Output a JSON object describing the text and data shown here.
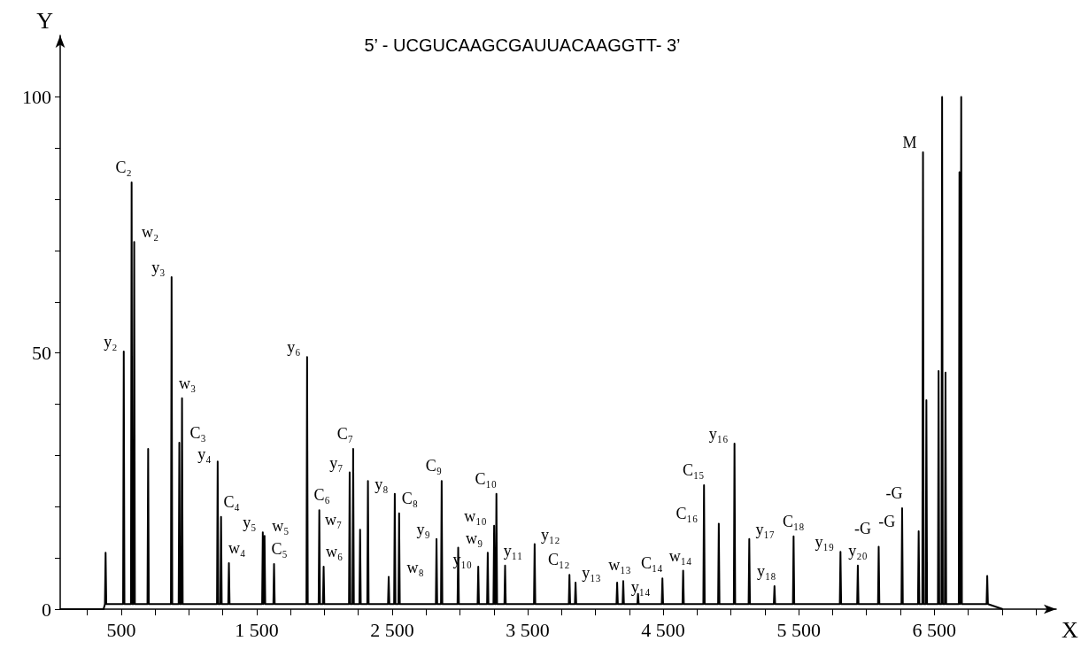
{
  "chart_data": {
    "type": "line",
    "title": "5’ - UCGUCAAGCGAUUACAAGGTT- 3’",
    "xlabel": "X",
    "ylabel": "Y",
    "xlim": [
      50,
      7400
    ],
    "ylim": [
      0,
      112
    ],
    "xticks": [
      {
        "value": 250,
        "label": null
      },
      {
        "value": 500,
        "label": "500"
      },
      {
        "value": 750,
        "label": null
      },
      {
        "value": 1000,
        "label": null
      },
      {
        "value": 1250,
        "label": null
      },
      {
        "value": 1500,
        "label": "1 500"
      },
      {
        "value": 1750,
        "label": null
      },
      {
        "value": 2000,
        "label": null
      },
      {
        "value": 2250,
        "label": null
      },
      {
        "value": 2500,
        "label": "2 500"
      },
      {
        "value": 2750,
        "label": null
      },
      {
        "value": 3000,
        "label": null
      },
      {
        "value": 3250,
        "label": null
      },
      {
        "value": 3500,
        "label": "3 500"
      },
      {
        "value": 3750,
        "label": null
      },
      {
        "value": 4000,
        "label": null
      },
      {
        "value": 4250,
        "label": null
      },
      {
        "value": 4500,
        "label": "4 500"
      },
      {
        "value": 4750,
        "label": null
      },
      {
        "value": 5000,
        "label": null
      },
      {
        "value": 5250,
        "label": null
      },
      {
        "value": 5500,
        "label": "5 500"
      },
      {
        "value": 5750,
        "label": null
      },
      {
        "value": 6000,
        "label": null
      },
      {
        "value": 6250,
        "label": null
      },
      {
        "value": 6500,
        "label": "6 500"
      },
      {
        "value": 6750,
        "label": null
      },
      {
        "value": 7000,
        "label": null
      },
      {
        "value": 7250,
        "label": null
      }
    ],
    "yticks": [
      0,
      {
        "value": 10,
        "label": null
      },
      {
        "value": 20,
        "label": null
      },
      {
        "value": 30,
        "label": null
      },
      {
        "value": 40,
        "label": null
      },
      50,
      {
        "value": 60,
        "label": null
      },
      {
        "value": 70,
        "label": null
      },
      {
        "value": 80,
        "label": null
      },
      {
        "value": 90,
        "label": null
      },
      100
    ],
    "grid": false,
    "marker": "none",
    "series": [
      {
        "color": "#000000",
        "x": [
          50,
          370,
          380,
          385,
          390,
          514,
          519,
          524,
          572,
          577,
          582,
          591,
          596,
          601,
          694,
          699,
          704,
          867,
          872,
          877,
          924,
          929,
          934,
          944,
          949,
          954,
          1207,
          1212,
          1217,
          1232,
          1237,
          1242,
          1290,
          1295,
          1300,
          1540,
          1545,
          1550,
          1553,
          1558,
          1563,
          1623,
          1628,
          1633,
          1867,
          1872,
          1877,
          1957,
          1962,
          1967,
          1989,
          1994,
          1999,
          2181,
          2186,
          2191,
          2207,
          2212,
          2217,
          2258,
          2263,
          2268,
          2316,
          2321,
          2326,
          2469,
          2474,
          2479,
          2514,
          2519,
          2524,
          2546,
          2551,
          2556,
          2822,
          2827,
          2832,
          2860,
          2865,
          2870,
          2982,
          2987,
          2992,
          3130,
          3135,
          3140,
          3200,
          3205,
          3210,
          3247,
          3252,
          3257,
          3264,
          3269,
          3274,
          3328,
          3333,
          3338,
          3546,
          3551,
          3556,
          3803,
          3808,
          3813,
          3848,
          3853,
          3858,
          4155,
          4160,
          4165,
          4200,
          4205,
          4210,
          4309,
          4314,
          4319,
          4489,
          4494,
          4499,
          4642,
          4647,
          4652,
          4796,
          4801,
          4806,
          4905,
          4910,
          4915,
          5021,
          5026,
          5031,
          5130,
          5135,
          5140,
          5316,
          5321,
          5326,
          5457,
          5462,
          5467,
          5803,
          5808,
          5813,
          5931,
          5936,
          5941,
          6085,
          6090,
          6095,
          6258,
          6263,
          6268,
          6380,
          6385,
          6390,
          6412,
          6417,
          6422,
          6437,
          6442,
          6447,
          6527,
          6532,
          6537,
          6553,
          6558,
          6563,
          6578,
          6583,
          6588,
          6681,
          6686,
          6691,
          6694,
          6699,
          6704,
          6886,
          6891,
          6896,
          7006
        ],
        "values": [
          0,
          0,
          1,
          11,
          1,
          1,
          50.3,
          1,
          1,
          83.3,
          1,
          1,
          71.7,
          1,
          1,
          31.3,
          1,
          1,
          64.8,
          1,
          1,
          32.5,
          1,
          1,
          41.2,
          1,
          1,
          28.8,
          1,
          1,
          18,
          1,
          1,
          9,
          1,
          1,
          15,
          1,
          1,
          14.3,
          1,
          1,
          8.8,
          1,
          1,
          49.2,
          1,
          1,
          19.3,
          1,
          1,
          8.3,
          1,
          1,
          26.7,
          1,
          1,
          31.3,
          1,
          1,
          15.5,
          1,
          1,
          25,
          1,
          1,
          6.3,
          1,
          1,
          22.5,
          1,
          1,
          18.7,
          1,
          1,
          13.7,
          1,
          1,
          25,
          1,
          1,
          12,
          1,
          1,
          8.3,
          1,
          1,
          11,
          1,
          1,
          16.3,
          1,
          1,
          22.5,
          1,
          1,
          8.5,
          1,
          1,
          12.7,
          1,
          1,
          6.7,
          1,
          1,
          5.2,
          1,
          1,
          5.2,
          1,
          1,
          5.5,
          1,
          1,
          3,
          1,
          1,
          6,
          1,
          1,
          7.5,
          1,
          1,
          24.2,
          1,
          1,
          16.7,
          1,
          1,
          32.3,
          1,
          1,
          13.7,
          1,
          1,
          4.5,
          1,
          1,
          14.2,
          1,
          1,
          11.2,
          1,
          1,
          8.5,
          1,
          1,
          12.2,
          1,
          1,
          19.7,
          1,
          1,
          15.2,
          1,
          1,
          89.2,
          1,
          1,
          40.8,
          1,
          1,
          46.5,
          1,
          1,
          100,
          1,
          1,
          46.2,
          1,
          1,
          85.3,
          1,
          1,
          100,
          1,
          1,
          6.5,
          1,
          0
        ]
      }
    ],
    "annotations": [
      {
        "text": "C₂",
        "x": 577,
        "y": 83.3
      },
      {
        "text": "w₂",
        "x": 596,
        "y": 71.7
      },
      {
        "text": "y₂",
        "x": 519,
        "y": 50.3
      },
      {
        "text": "y₃",
        "x": 872,
        "y": 64.8
      },
      {
        "text": "w₃",
        "x": 949,
        "y": 41.2
      },
      {
        "text": "C₃",
        "x": 929,
        "y": 32.5
      },
      {
        "text": "y₄",
        "x": 1212,
        "y": 28.8
      },
      {
        "text": "C₄",
        "x": 1237,
        "y": 18
      },
      {
        "text": "w₄",
        "x": 1295,
        "y": 9
      },
      {
        "text": "y₅",
        "x": 1545,
        "y": 15
      },
      {
        "text": "w₅",
        "x": 1558,
        "y": 14.3
      },
      {
        "text": "C₅",
        "x": 1628,
        "y": 8.8
      },
      {
        "text": "y₆",
        "x": 1872,
        "y": 49.2
      },
      {
        "text": "w₆",
        "x": 1994,
        "y": 8.3
      },
      {
        "text": "C₆",
        "x": 1962,
        "y": 19.3
      },
      {
        "text": "y₇",
        "x": 2186,
        "y": 26.7
      },
      {
        "text": "C₇",
        "x": 2212,
        "y": 31.3
      },
      {
        "text": "w₇",
        "x": 2263,
        "y": 15.5
      },
      {
        "text": "y₈",
        "x": 2519,
        "y": 22.5
      },
      {
        "text": "C₈",
        "x": 2551,
        "y": 18.7
      },
      {
        "text": "w₈",
        "x": 2474,
        "y": 6.3
      },
      {
        "text": "y₉",
        "x": 2827,
        "y": 13.7
      },
      {
        "text": "C₉",
        "x": 2865,
        "y": 25
      },
      {
        "text": "C₁₀",
        "x": 3269,
        "y": 22.5
      },
      {
        "text": "w₁₀",
        "x": 3252,
        "y": 16.3
      },
      {
        "text": "w₉",
        "x": 2987,
        "y": 12
      },
      {
        "text": "y₁₀",
        "x": 3135,
        "y": 8.3
      },
      {
        "text": "y₁₁",
        "x": 3333,
        "y": 8.5
      },
      {
        "text": "y₁₂",
        "x": 3551,
        "y": 12.7
      },
      {
        "text": "C₁₂",
        "x": 3808,
        "y": 6.7
      },
      {
        "text": "y₁₃",
        "x": 3853,
        "y": 5.2
      },
      {
        "text": "w₁₃",
        "x": 4160,
        "y": 5.2
      },
      {
        "text": "C₁₄",
        "x": 4494,
        "y": 6
      },
      {
        "text": "y₁₄",
        "x": 4314,
        "y": 3
      },
      {
        "text": "C₁₅",
        "x": 4801,
        "y": 24.2
      },
      {
        "text": "w₁₄",
        "x": 4647,
        "y": 7.5
      },
      {
        "text": "C₁₆",
        "x": 4910,
        "y": 16.7
      },
      {
        "text": "y₁₆",
        "x": 5026,
        "y": 32.3
      },
      {
        "text": "y₁₇",
        "x": 5135,
        "y": 13.7
      },
      {
        "text": "y₁₈",
        "x": 5321,
        "y": 4.5
      },
      {
        "text": "C₁₈",
        "x": 5462,
        "y": 14.2
      },
      {
        "text": "y₁₉",
        "x": 5808,
        "y": 11.2
      },
      {
        "text": "y₂₀",
        "x": 5936,
        "y": 8.5
      },
      {
        "text": "-G",
        "x": 6385,
        "y": 15.2
      },
      {
        "text": "-G",
        "x": 6263,
        "y": 19.7
      },
      {
        "text": "-G",
        "x": 6090,
        "y": 12.2
      },
      {
        "text": "M",
        "x": 6417,
        "y": 89.2
      }
    ]
  }
}
